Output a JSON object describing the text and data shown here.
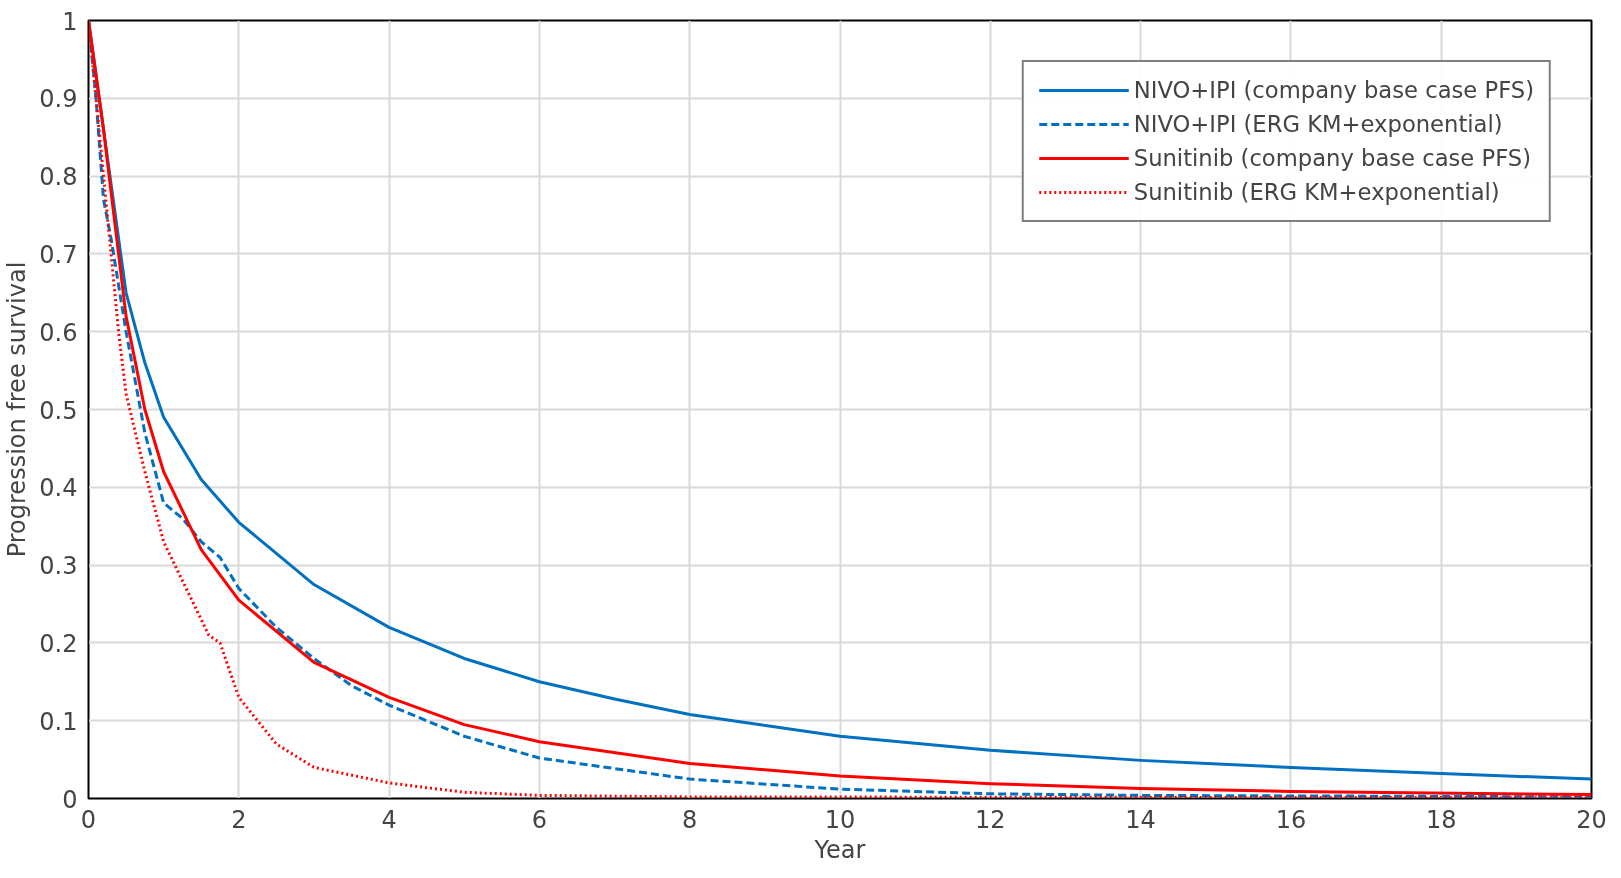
{
  "chart_data": {
    "type": "line",
    "xlabel": "Year",
    "ylabel": "Progression free survival",
    "xlim": [
      0,
      20
    ],
    "xticks": [
      0,
      2,
      4,
      6,
      8,
      10,
      12,
      14,
      16,
      18,
      20
    ],
    "ylim": [
      0,
      1
    ],
    "yticks": [
      0,
      0.1,
      0.2,
      0.3,
      0.4,
      0.5,
      0.6,
      0.7,
      0.8,
      0.9,
      1
    ],
    "grid": true,
    "legend": "top right",
    "series": [
      {
        "name": "NIVO+IPI (company base case PFS)",
        "color": "#0070c0",
        "line_style": "solid",
        "x": [
          0,
          0.5,
          0.75,
          1,
          1.5,
          2,
          3,
          4,
          5,
          6,
          7,
          8,
          10,
          12,
          14,
          16,
          18,
          20
        ],
        "values": [
          1,
          0.65,
          0.56,
          0.49,
          0.41,
          0.355,
          0.275,
          0.22,
          0.18,
          0.15,
          0.128,
          0.108,
          0.08,
          0.062,
          0.049,
          0.04,
          0.032,
          0.025
        ]
      },
      {
        "name": "NIVO+IPI (ERG KM+exponential)",
        "color": "#0070c0",
        "line_style": "dashed",
        "x": [
          0,
          0.1,
          0.2,
          0.3,
          0.5,
          0.75,
          1,
          1.25,
          1.5,
          1.75,
          2,
          2.5,
          3,
          3.5,
          4,
          5,
          6,
          8,
          10,
          12,
          14,
          20
        ],
        "values": [
          1,
          0.9,
          0.77,
          0.72,
          0.6,
          0.47,
          0.38,
          0.36,
          0.33,
          0.31,
          0.27,
          0.22,
          0.18,
          0.145,
          0.12,
          0.08,
          0.052,
          0.025,
          0.012,
          0.006,
          0.004,
          0.002
        ]
      },
      {
        "name": "Sunitinib (company base case PFS)",
        "color": "#ff0000",
        "line_style": "solid",
        "x": [
          0,
          0.2,
          0.4,
          0.5,
          0.75,
          1,
          1.5,
          2,
          3,
          4,
          5,
          6,
          8,
          10,
          12,
          14,
          16,
          20
        ],
        "values": [
          1,
          0.86,
          0.7,
          0.62,
          0.5,
          0.42,
          0.32,
          0.255,
          0.175,
          0.13,
          0.095,
          0.073,
          0.045,
          0.029,
          0.019,
          0.013,
          0.009,
          0.005
        ]
      },
      {
        "name": "Sunitinib (ERG KM+exponential)",
        "color": "#ff0000",
        "line_style": "dotted",
        "x": [
          0,
          0.1,
          0.25,
          0.4,
          0.5,
          0.75,
          1,
          1.25,
          1.5,
          1.6,
          1.75,
          2,
          2.5,
          3,
          4,
          5,
          6,
          8,
          20
        ],
        "values": [
          1,
          0.9,
          0.75,
          0.6,
          0.52,
          0.42,
          0.33,
          0.28,
          0.23,
          0.21,
          0.2,
          0.13,
          0.07,
          0.04,
          0.02,
          0.008,
          0.004,
          0.002,
          0.001
        ]
      }
    ]
  }
}
